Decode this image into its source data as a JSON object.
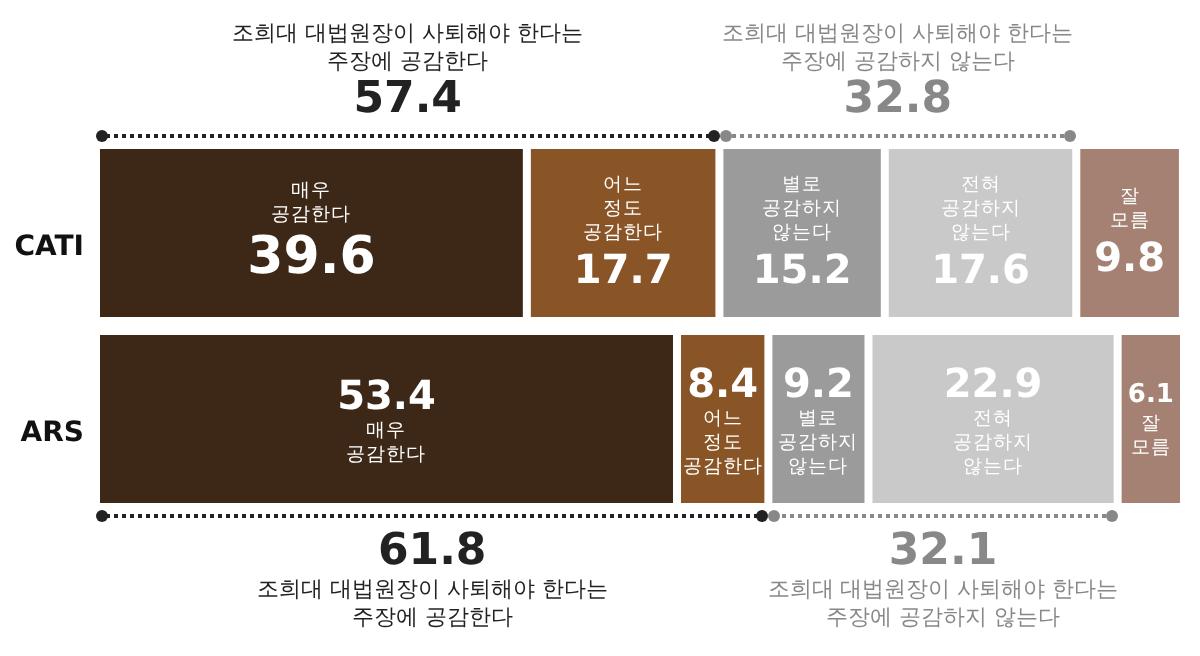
{
  "chart_data": {
    "type": "bar",
    "orientation": "horizontal",
    "stacked": true,
    "categories": [
      "CATI",
      "ARS"
    ],
    "series": [
      {
        "name": "매우 공감한다",
        "color": "#3d2818",
        "values": [
          39.6,
          53.4
        ]
      },
      {
        "name": "어느 정도 공감한다",
        "color": "#8a5526",
        "values": [
          17.7,
          8.4
        ]
      },
      {
        "name": "별로 공감하지 않는다",
        "color": "#9b9b9b",
        "values": [
          15.2,
          9.2
        ]
      },
      {
        "name": "전혀 공감하지 않는다",
        "color": "#c9c9c9",
        "values": [
          17.6,
          22.9
        ]
      },
      {
        "name": "잘 모름",
        "color": "#a58173",
        "values": [
          9.8,
          6.1
        ]
      }
    ],
    "xlim": [
      0,
      100
    ],
    "data_labels": true,
    "legend": false,
    "annotations": [
      "조희대 대법원장이 사퇴해야 한다는 주장에 공감한다",
      "57.4",
      "조희대 대법원장이 사퇴해야 한다는 주장에 공감하지 않는다",
      "32.8",
      "61.8",
      "조희대 대법원장이 사퇴해야 한다는 주장에 공감한다",
      "32.1",
      "조희대 대법원장이 사퇴해야 한다는 주장에 공감하지 않는다"
    ]
  }
}
